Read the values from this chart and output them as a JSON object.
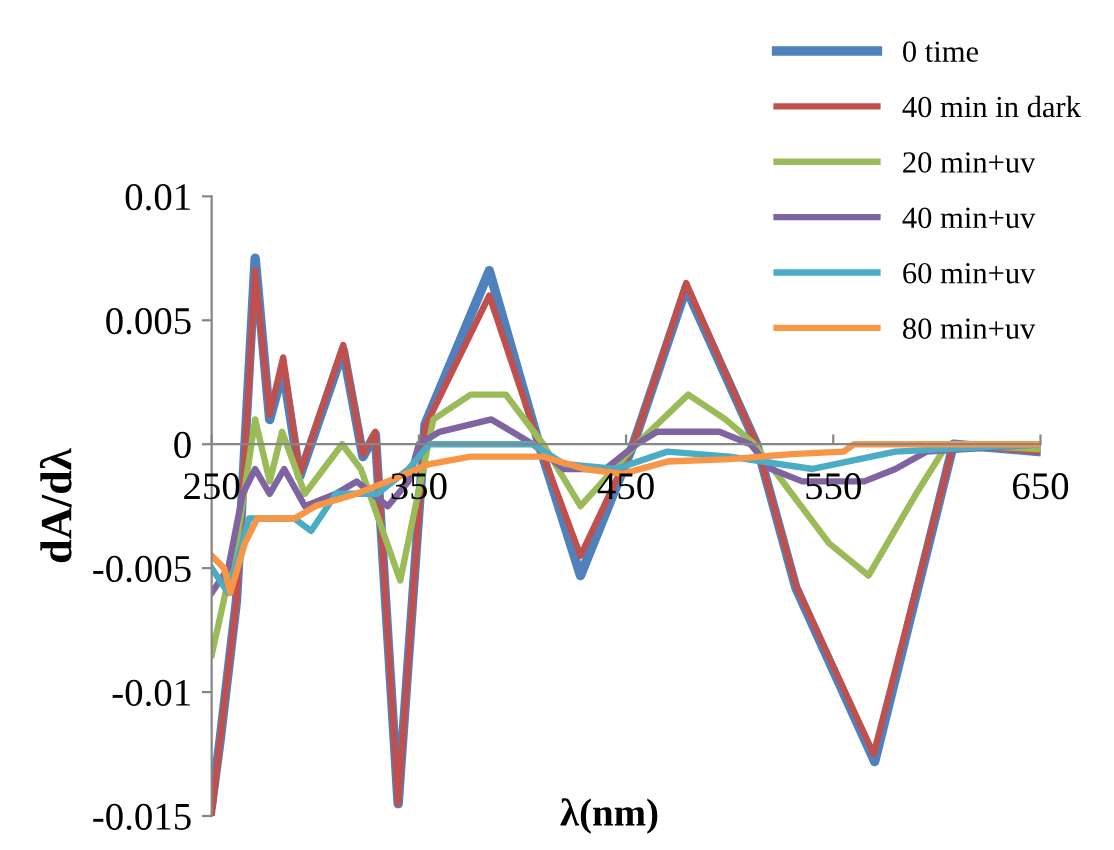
{
  "chart_data": {
    "type": "line",
    "xlabel": "λ(nm)",
    "ylabel": "dA/dλ",
    "xlim": [
      250,
      650
    ],
    "ylim": [
      -0.015,
      0.01
    ],
    "xticks": [
      250,
      350,
      450,
      550,
      650
    ],
    "yticks": [
      -0.015,
      -0.01,
      -0.005,
      0,
      0.005,
      0.01
    ],
    "grid": false,
    "legend": "top right",
    "marker": "none",
    "line_style": "solid",
    "series": [
      {
        "name": "0 time",
        "color": "#4f81bd",
        "x": [
          250,
          254,
          262,
          271,
          278,
          284.5,
          292.5,
          313.5,
          323,
          329,
          340,
          353,
          384,
          408,
          428,
          453.5,
          479,
          513,
          532,
          570,
          608,
          650
        ],
        "values": [
          -0.0145,
          -0.012,
          -0.0063,
          0.0075,
          0.001,
          0.003,
          -0.0013,
          0.0038,
          -0.0005,
          0.0004,
          -0.0145,
          0.0008,
          0.007,
          0,
          -0.0053,
          0,
          0.0063,
          0,
          -0.0058,
          -0.0128,
          0,
          -0.0003
        ]
      },
      {
        "name": "40 min in dark",
        "color": "#c0504d",
        "x": [
          250,
          254,
          262,
          271,
          278,
          284.5,
          292.5,
          313.5,
          323,
          329,
          340,
          353,
          384,
          408,
          428,
          453.5,
          479,
          513,
          532,
          569.5,
          608,
          650
        ],
        "values": [
          -0.015,
          -0.012,
          -0.0063,
          0.007,
          0.0012,
          0.0035,
          -0.0012,
          0.004,
          -0.0004,
          0.0005,
          -0.0145,
          0.0007,
          0.006,
          0,
          -0.0045,
          0,
          0.0065,
          0,
          -0.0057,
          -0.0125,
          0,
          -0.0003
        ]
      },
      {
        "name": "20 min+uv",
        "color": "#9bbb59",
        "x": [
          250,
          262,
          271,
          278,
          284,
          295,
          313,
          322,
          341,
          357,
          375,
          392,
          410,
          428,
          455,
          480,
          498,
          512,
          530,
          548,
          567,
          590,
          605,
          650
        ],
        "values": [
          -0.0085,
          -0.004,
          0.001,
          -0.0015,
          0.0005,
          -0.002,
          0,
          -0.001,
          -0.0055,
          0.001,
          0.002,
          0.002,
          0,
          -0.0025,
          0,
          0.002,
          0.001,
          0,
          -0.002,
          -0.004,
          -0.0053,
          -0.002,
          0,
          -0.0002
        ]
      },
      {
        "name": "40 min+uv",
        "color": "#8064a2",
        "x": [
          250,
          258,
          265,
          271,
          278,
          285,
          295,
          310,
          320,
          335,
          345,
          350,
          360,
          385,
          395,
          405,
          420,
          440,
          455,
          465,
          495,
          510,
          520,
          535,
          565,
          580,
          595,
          650
        ],
        "values": [
          -0.006,
          -0.005,
          -0.002,
          -0.001,
          -0.002,
          -0.001,
          -0.0025,
          -0.002,
          -0.0015,
          -0.0025,
          -0.0015,
          0,
          0.0005,
          0.001,
          0.0005,
          0,
          -0.001,
          -0.001,
          0,
          0.0005,
          0.0005,
          0,
          -0.001,
          -0.0015,
          -0.0015,
          -0.001,
          -0.0003,
          0
        ]
      },
      {
        "name": "60 min+uv",
        "color": "#4bacc6",
        "x": [
          250,
          258,
          268,
          290,
          298,
          310,
          330,
          345,
          355,
          405,
          420,
          445,
          470,
          500,
          540,
          580,
          650
        ],
        "values": [
          -0.005,
          -0.006,
          -0.003,
          -0.003,
          -0.0035,
          -0.002,
          -0.002,
          -0.001,
          0,
          0,
          -0.0008,
          -0.001,
          -0.0003,
          -0.0005,
          -0.001,
          -0.0003,
          0
        ]
      },
      {
        "name": "80 min+uv",
        "color": "#f79646",
        "x": [
          250,
          256,
          259,
          266,
          272,
          290,
          300,
          320,
          335,
          355,
          375,
          410,
          430,
          448,
          470,
          500,
          530,
          555,
          560,
          650
        ],
        "values": [
          -0.0045,
          -0.005,
          -0.006,
          -0.004,
          -0.003,
          -0.003,
          -0.0025,
          -0.002,
          -0.0015,
          -0.0008,
          -0.0005,
          -0.0005,
          -0.001,
          -0.0012,
          -0.0007,
          -0.0006,
          -0.0004,
          -0.0003,
          0,
          0
        ]
      }
    ]
  }
}
